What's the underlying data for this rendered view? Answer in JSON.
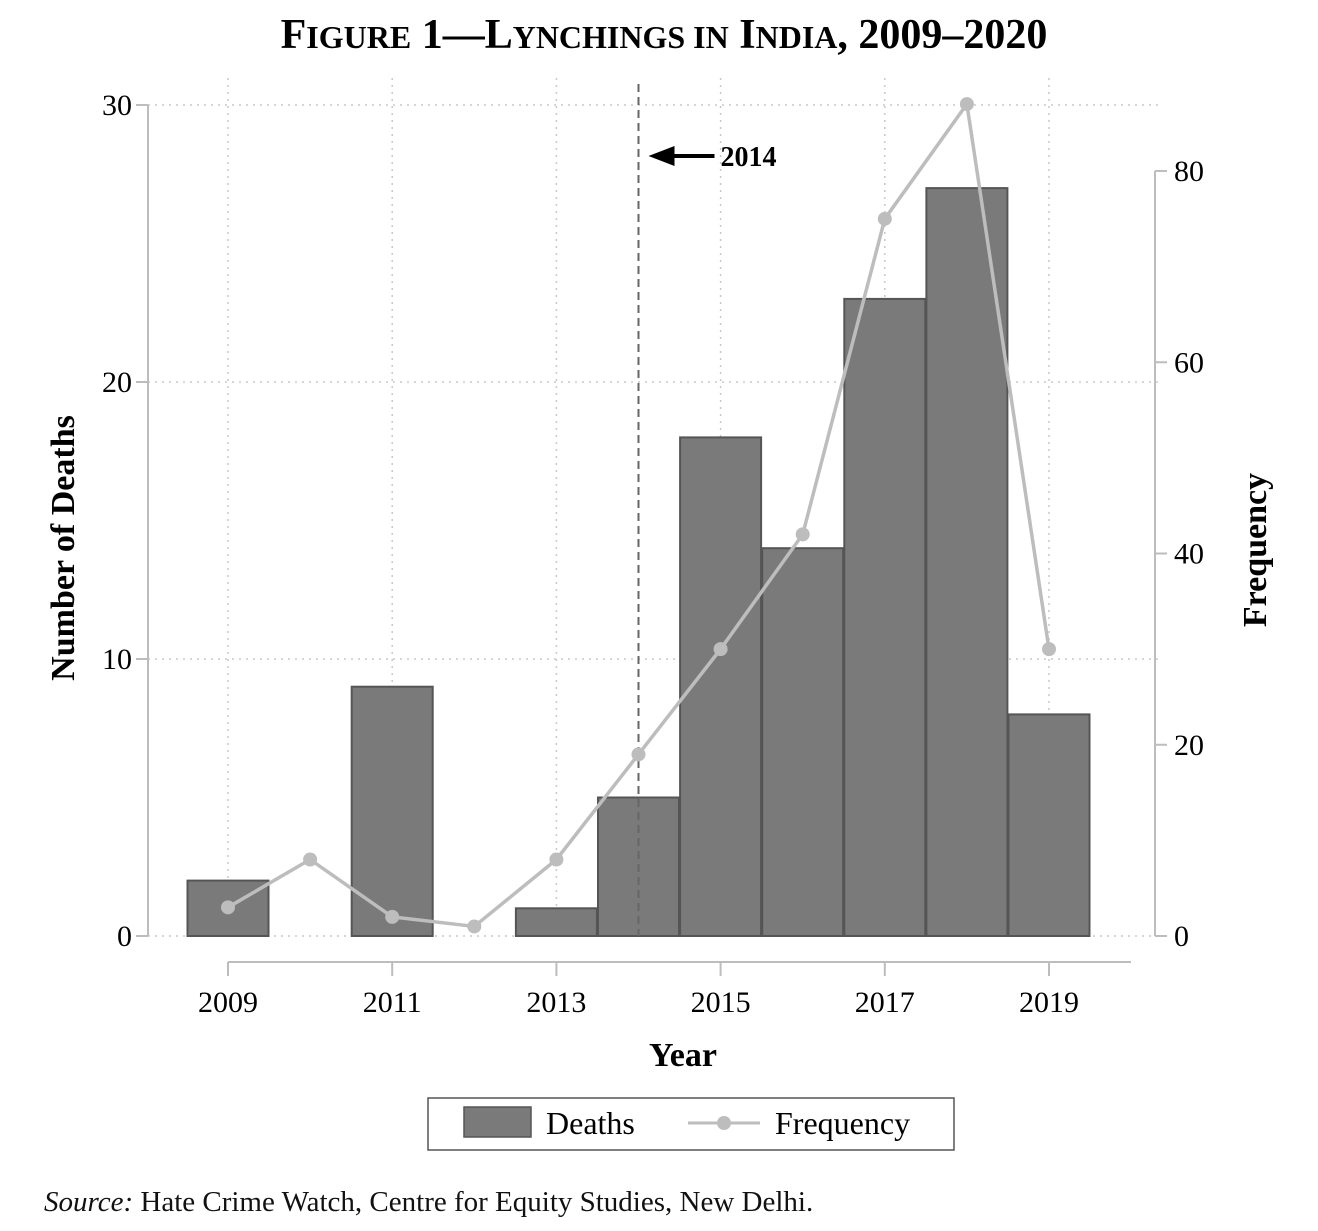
{
  "chart_data": {
    "type": "bar",
    "title": "Figure 1—Lynchings in India, 2009–2020",
    "title_first": "F",
    "title_parts": [
      {
        "text": "F",
        "big": true
      },
      {
        "text": "IGURE",
        "big": false
      },
      {
        "text": " 1—L",
        "big": true
      },
      {
        "text": "YNCHINGS IN",
        "big": false
      },
      {
        "text": " I",
        "big": true
      },
      {
        "text": "NDIA",
        "big": false
      },
      {
        "text": ", 2009–2020",
        "big": true
      }
    ],
    "xlabel": "Year",
    "ylabel": "Number of Deaths",
    "y2label": "Frequency",
    "xlim": [
      2008.2,
      2020.0
    ],
    "ylim": [
      0,
      30
    ],
    "y2lim": [
      0,
      80
    ],
    "x_ticks": [
      2009,
      2011,
      2013,
      2015,
      2017,
      2019
    ],
    "y_ticks": [
      0,
      10,
      20,
      30
    ],
    "y2_ticks": [
      0,
      20,
      40,
      60,
      80
    ],
    "grid": true,
    "colors": {
      "bars": "#7a7a7a",
      "bar_edge": "#555555",
      "line": "#bdbdbd",
      "grid": "#c8c8c8",
      "marker": "#6e6e6e"
    },
    "series": [
      {
        "name": "Deaths",
        "kind": "bar",
        "axis": "left",
        "x": [
          2009,
          2010,
          2011,
          2012,
          2013,
          2014,
          2015,
          2016,
          2017,
          2018,
          2019
        ],
        "values": [
          2,
          0,
          9,
          0,
          1,
          5,
          18,
          14,
          23,
          27,
          8
        ]
      },
      {
        "name": "Frequency",
        "kind": "line",
        "axis": "right",
        "x": [
          2009,
          2010,
          2011,
          2012,
          2013,
          2014,
          2015,
          2016,
          2017,
          2018,
          2019
        ],
        "values": [
          3,
          8,
          2,
          1,
          8,
          19,
          30,
          42,
          75,
          87,
          30
        ]
      }
    ],
    "annotations": [
      {
        "type": "vline",
        "x": 2014,
        "style": "dashed",
        "label": "2014",
        "arrow": "left"
      }
    ],
    "legend": {
      "placement": "bottom-center",
      "entries": [
        "Deaths",
        "Frequency"
      ]
    }
  },
  "source": {
    "prefix": "Source:",
    "text": " Hate Crime Watch, Centre for Equity Studies, New Delhi."
  }
}
